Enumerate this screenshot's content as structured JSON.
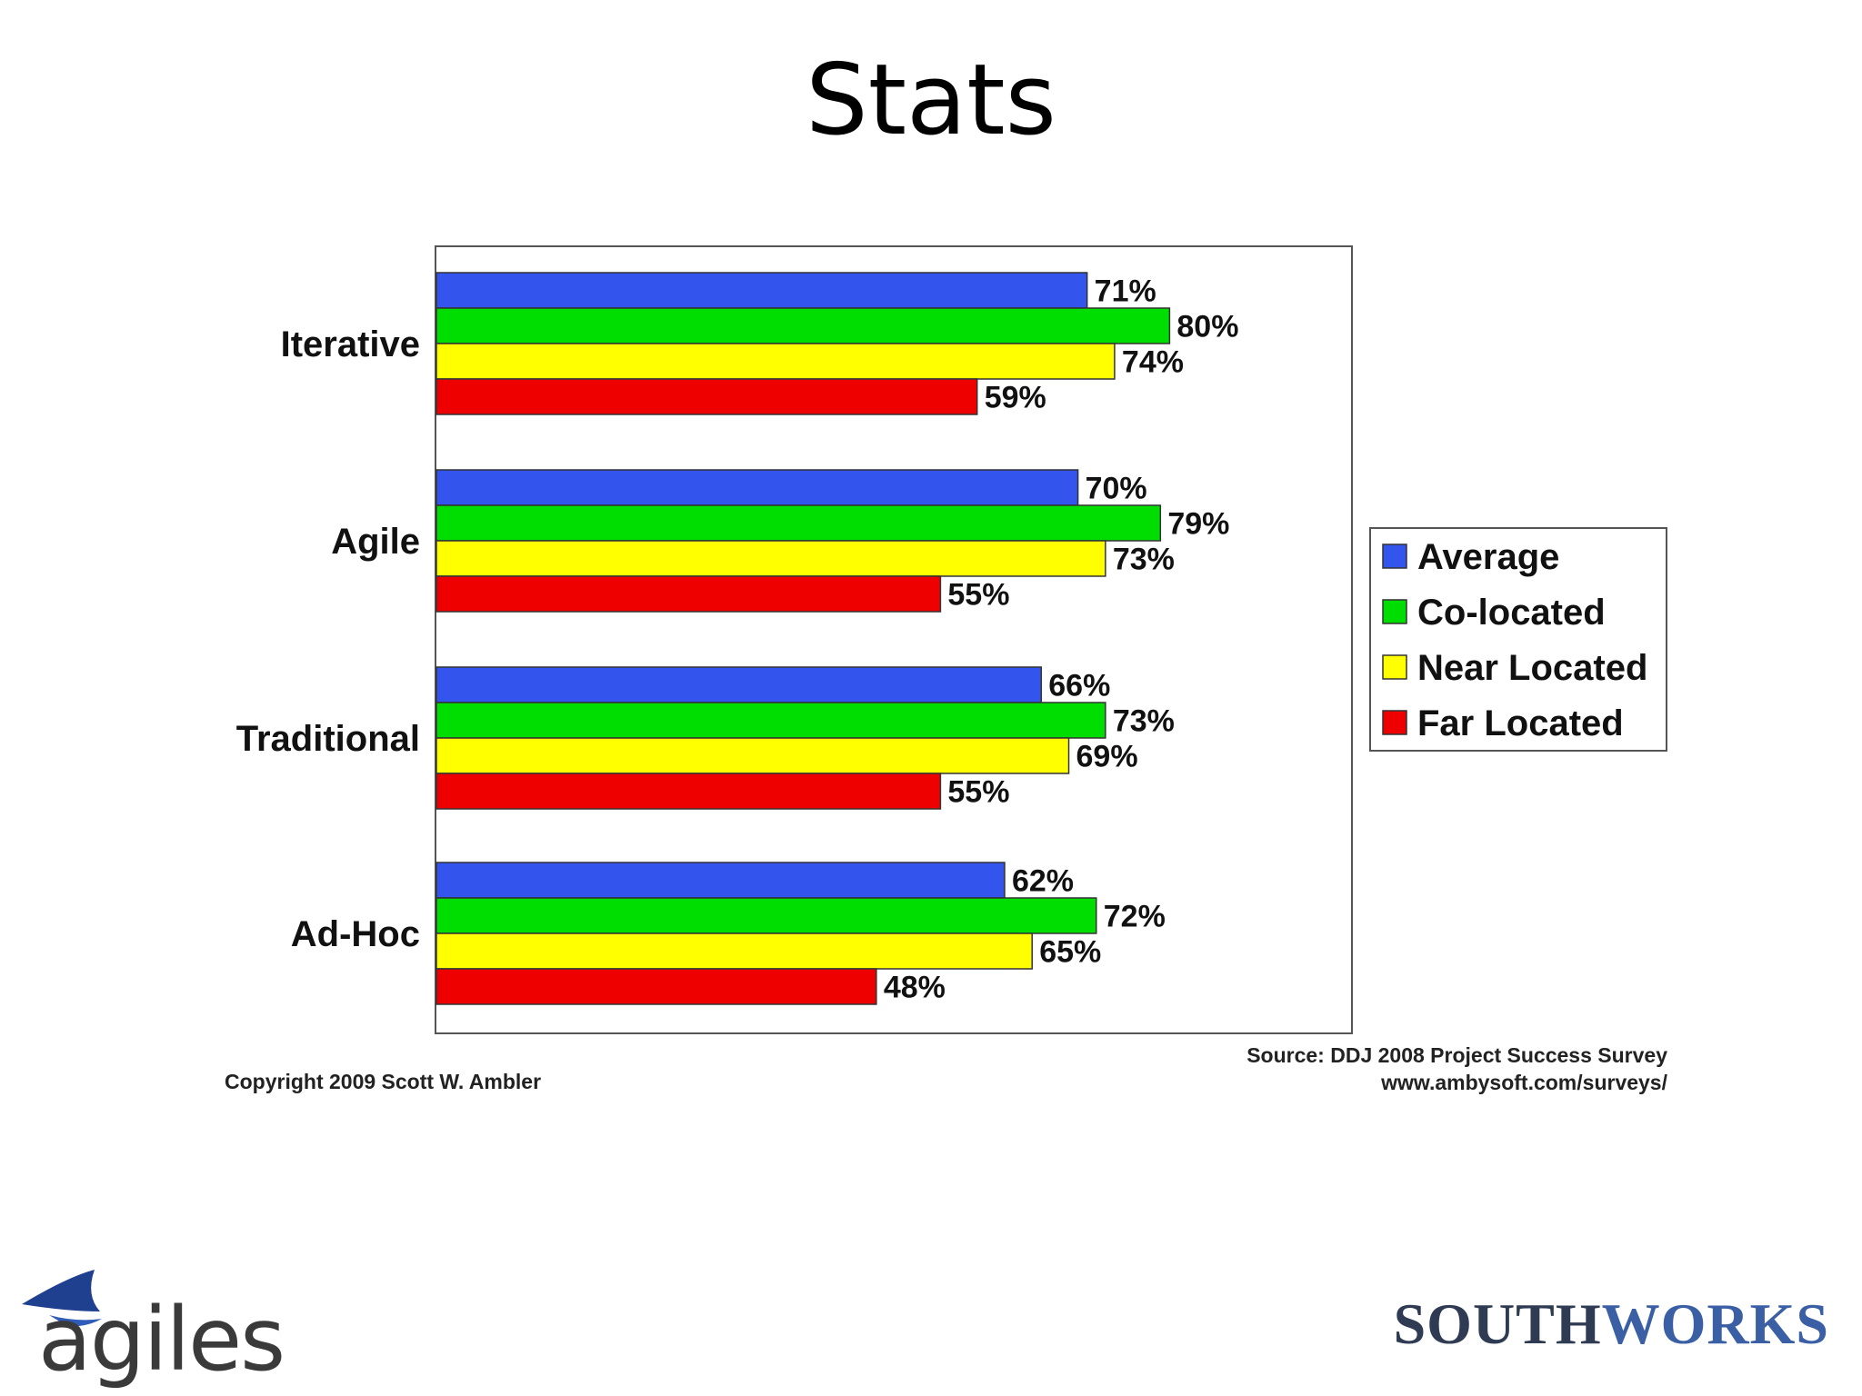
{
  "slide": {
    "title": "Stats",
    "copyright": "Copyright 2009 Scott W. Ambler",
    "source_line1": "Source: DDJ 2008 Project Success Survey",
    "source_line2": "www.ambysoft.com/surveys/",
    "logo_left_text": "agiles",
    "logo_right_part1": "SOUTH",
    "logo_right_part2": "WORKS"
  },
  "chart_data": {
    "type": "bar",
    "orientation": "horizontal",
    "categories": [
      "Iterative",
      "Agile",
      "Traditional",
      "Ad-Hoc"
    ],
    "series": [
      {
        "name": "Average",
        "color": "#3355ee",
        "values": [
          71,
          70,
          66,
          62
        ],
        "labels": [
          "71%",
          "70%",
          "66%",
          "62%"
        ]
      },
      {
        "name": "Co-located",
        "color": "#00dd00",
        "values": [
          80,
          79,
          73,
          72
        ],
        "labels": [
          "80%",
          "79%",
          "73%",
          "72%"
        ]
      },
      {
        "name": "Near Located",
        "color": "#ffff00",
        "values": [
          74,
          73,
          69,
          65
        ],
        "labels": [
          "74%",
          "73%",
          "69%",
          "65%"
        ]
      },
      {
        "name": "Far Located",
        "color": "#ee0000",
        "values": [
          59,
          55,
          55,
          48
        ],
        "labels": [
          "59%",
          "55%",
          "55%",
          "48%"
        ]
      }
    ],
    "xlim": [
      0,
      100
    ],
    "grid": false,
    "legend": "right"
  }
}
